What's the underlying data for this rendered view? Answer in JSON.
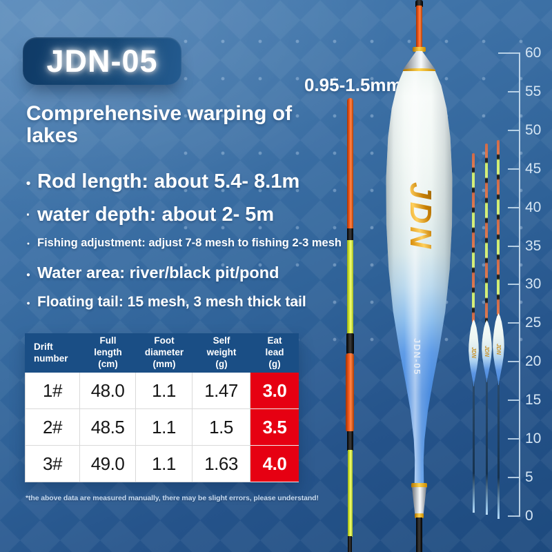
{
  "badge": {
    "label": "JDN-05"
  },
  "heading": {
    "text": "Comprehensive warping of lakes"
  },
  "annotation": {
    "tip_diameter": "0.95-1.5mm"
  },
  "bullets": [
    {
      "marker": "dot",
      "size": "lg",
      "text": "Rod length: about 5.4- 8.1m"
    },
    {
      "marker": "tiny",
      "size": "lg",
      "text": "water depth: about 2- 5m"
    },
    {
      "marker": "dot",
      "size": "sm",
      "text": "Fishing adjustment: adjust 7-8 mesh to fishing 2-3 mesh"
    },
    {
      "marker": "dot",
      "size": "md",
      "text": "Water area: river/black pit/pond"
    },
    {
      "marker": "dot",
      "size": "md2",
      "text": "Floating tail: 15 mesh, 3 mesh thick tail"
    }
  ],
  "spec_table": {
    "headers": [
      "Drift\nnumber",
      "Full\nlength\n(cm)",
      "Foot\ndiameter\n(mm)",
      "Self\nweight\n(g)",
      "Eat\nlead\n(g)"
    ],
    "rows": [
      [
        "1#",
        "48.0",
        "1.1",
        "1.47",
        "3.0"
      ],
      [
        "2#",
        "48.5",
        "1.1",
        "1.5",
        "3.5"
      ],
      [
        "3#",
        "49.0",
        "1.1",
        "1.63",
        "4.0"
      ]
    ],
    "highlight_last_column": true
  },
  "footnote": "*the above data are measured manually, there may be slight errors, please understand!",
  "ruler": {
    "labels": [
      "60",
      "55",
      "50",
      "45",
      "40",
      "35",
      "30",
      "25",
      "20",
      "15",
      "10",
      "5",
      "0"
    ]
  },
  "float_labels": {
    "brand": "JDN",
    "model": "JDN-05",
    "small_brand": "JDN"
  },
  "colors": {
    "accent_red": "#e60012",
    "table_header_blue": "#1a4e85",
    "badge_navy": "#123c6a",
    "background_top": "#4d82b6",
    "background_bottom": "#1d4a7e",
    "antenna_orange": "#ff5a1f",
    "antenna_yellow": "#dff23e",
    "gold_band": "#f0b028",
    "body_blue": "#4689de"
  }
}
